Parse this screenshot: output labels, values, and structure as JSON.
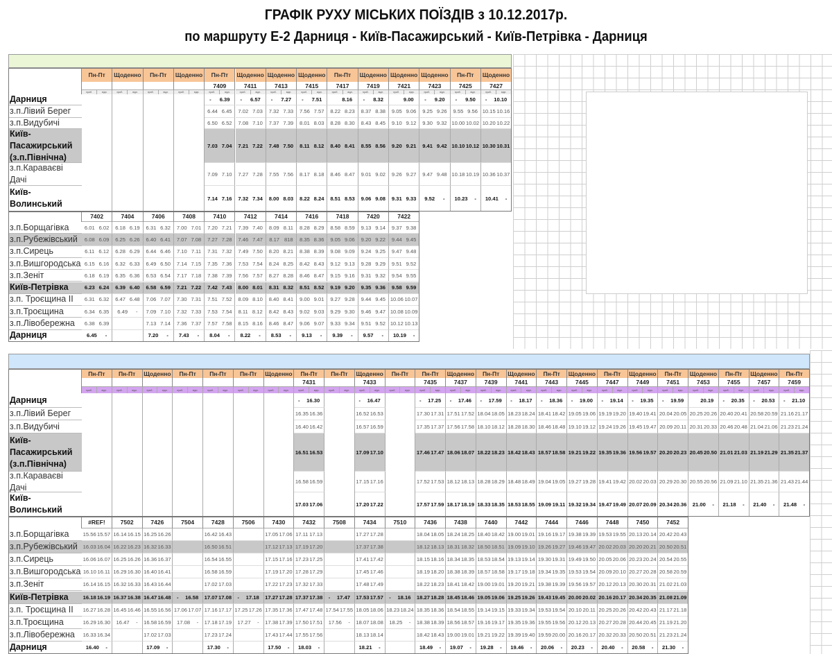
{
  "title": "ГРАФІК РУХУ МІСЬКИХ ПОЇЗДІВ з 10.12.2017р.",
  "subtitle": "по маршруту Е-2 Дарниця - Київ-Пасажирський - Київ-Петрівка - Дарниця",
  "sub_labels": [
    "приб.",
    "відп."
  ],
  "colors": {
    "day_header": "#f8c597",
    "top_bar": "#eaf6d6",
    "bottom_bar": "#cfe6fb",
    "sub_header_bottom": "#d3a4ef",
    "highlight_row": "#c8c8c8"
  },
  "stations_upper": [
    "Дарниця",
    "з.п.Лівий Берег",
    "з.п.Видубичі",
    "Київ-Пасажирський (з.п.Північна)",
    "з.п.Караваєві Дачі",
    "Київ-Волинський"
  ],
  "stations_lower": [
    "з.п.Борщагівка",
    "з.п.Рубежівський",
    "з.п.Сирець",
    "з.п.Вишгородська",
    "з.п.Зеніт",
    "Київ-Петрівка",
    "з.п. Троєщина ІІ",
    "з.п.Троєщина",
    "з.п.Лівобережна",
    "Дарниця"
  ],
  "morning": {
    "upper": [
      {
        "days": "Пн-Пт",
        "train": "",
        "times": []
      },
      {
        "days": "Щоденно",
        "train": "",
        "times": []
      },
      {
        "days": "Пн-Пт",
        "train": "",
        "times": []
      },
      {
        "days": "Щоденно",
        "train": "",
        "times": []
      },
      {
        "days": "Пн-Пт",
        "train": "7409",
        "times": [
          "-|6.39",
          "6.44|6.45",
          "6.50|6.52",
          "7.03|7.04",
          "7.09|7.10",
          "7.14|7.16"
        ]
      },
      {
        "days": "Щоденно",
        "train": "7411",
        "times": [
          "-|6.57",
          "7.02|7.03",
          "7.08|7.10",
          "7.21|7.22",
          "7.27|7.28",
          "7.32|7.34"
        ]
      },
      {
        "days": "Щоденно",
        "train": "7413",
        "times": [
          "-|7.27",
          "7.32|7.33",
          "7.37|7.39",
          "7.48|7.50",
          "7.55|7.56",
          "8.00|8.03"
        ]
      },
      {
        "days": "Щоденно",
        "train": "7415",
        "times": [
          "-|7.51",
          "7.56|7.57",
          "8.01|8.03",
          "8.11|8.12",
          "8.17|8.18",
          "8.22|8.24"
        ]
      },
      {
        "days": "Пн-Пт",
        "train": "7417",
        "times": [
          "|8.16",
          "8.22|8.23",
          "8.28|8.30",
          "8.40|8.41",
          "8.46|8.47",
          "8.51|8.53"
        ]
      },
      {
        "days": "Щоденно",
        "train": "7419",
        "times": [
          "-|8.32",
          "8.37|8.38",
          "8.43|8.45",
          "8.55|8.56",
          "9.01|9.02",
          "9.06|9.08"
        ]
      },
      {
        "days": "Щоденно",
        "train": "7421",
        "times": [
          "|9.00",
          "9.05|9.06",
          "9.10|9.12",
          "9.20|9.21",
          "9.26|9.27",
          "9.31|9.33"
        ]
      },
      {
        "days": "Щоденно",
        "train": "7423",
        "times": [
          "-|9.20",
          "9.25|9.26",
          "9.30|9.32",
          "9.41|9.42",
          "9.47|9.48",
          "9.52|-"
        ]
      },
      {
        "days": "Пн-Пт",
        "train": "7425",
        "times": [
          "-|9.50",
          "9.55|9.56",
          "10.00|10.02",
          "10.10|10.12",
          "10.18|10.19",
          "10.23|-"
        ]
      },
      {
        "days": "Щоденно",
        "train": "7427",
        "times": [
          "-|10.10",
          "10.15|10.16",
          "10.20|10.22",
          "10.30|10.31",
          "10.36|10.37",
          "10.41|-"
        ]
      }
    ],
    "lower": [
      {
        "train": "7402",
        "times": [
          "6.01|6.02",
          "6.08|6.09",
          "6.11|6.12",
          "6.15|6.16",
          "6.18|6.19",
          "6.23|6.24",
          "6.31|6.32",
          "6.34|6.35",
          "6.38|6.39",
          "6.45|-"
        ]
      },
      {
        "train": "7404",
        "times": [
          "6.18|6.19",
          "6.25|6.26",
          "6.28|6.29",
          "6.32|6.33",
          "6.35|6.36",
          "6.39|6.40",
          "6.47|6.48",
          "6.49|-",
          "",
          ""
        ]
      },
      {
        "train": "7406",
        "times": [
          "6.31|6.32",
          "6.40|6.41",
          "6.44|6.46",
          "6.49|6.50",
          "6.53|6.54",
          "6.58|6.59",
          "7.06|7.07",
          "7.09|7.10",
          "7.13|7.14",
          "7.20|-"
        ]
      },
      {
        "train": "7408",
        "times": [
          "7.00|7.01",
          "7.07|7.08",
          "7.10|7.11",
          "7.14|7.15",
          "7.17|7.18",
          "7.21|7.22",
          "7.30|7.31",
          "7.32|7.33",
          "7.36|7.37",
          "7.43|-"
        ]
      },
      {
        "train": "7410",
        "times": [
          "7.20|7.21",
          "7.27|7.28",
          "7.31|7.32",
          "7.35|7.36",
          "7.38|7.39",
          "7.42|7.43",
          "7.51|7.52",
          "7.53|7.54",
          "7.57|7.58",
          "8.04|-"
        ]
      },
      {
        "train": "7412",
        "times": [
          "7.39|7.40",
          "7.46|7.47",
          "7.49|7.50",
          "7.53|7.54",
          "7.56|7.57",
          "8.00|8.01",
          "8.09|8.10",
          "8.11|8.12",
          "8.15|8.16",
          "8.22|-"
        ]
      },
      {
        "train": "7414",
        "times": [
          "8.09|8.11",
          "8.17|818",
          "8.20|8.21",
          "8.24|8.25",
          "8.27|8.28",
          "8.31|8.32",
          "8.40|8.41",
          "8.42|8.43",
          "8.46|8.47",
          "8.53|-"
        ]
      },
      {
        "train": "7416",
        "times": [
          "8.28|8.29",
          "8.35|8.36",
          "8.38|8.39",
          "8.42|8.43",
          "8.46|8.47",
          "8.51|8.52",
          "9.00|9.01",
          "9.02|9.03",
          "9.06|9.07",
          "9.13|-"
        ]
      },
      {
        "train": "7418",
        "times": [
          "8.58|8.59",
          "9.05|9.06",
          "9.08|9.09",
          "9.12|9.13",
          "9.15|9.16",
          "9.19|9.20",
          "9.27|9.28",
          "9.29|9.30",
          "9.33|9.34",
          "9.39|-"
        ]
      },
      {
        "train": "7420",
        "times": [
          "9.13|9.14",
          "9.20|9.22",
          "9.24|9.25",
          "9.28|9.29",
          "9.31|9.32",
          "9.35|9.36",
          "9.44|9.45",
          "9.46|9.47",
          "9.51|9.52",
          "9.57|-"
        ]
      },
      {
        "train": "7422",
        "times": [
          "9.37|9.38",
          "9.44|9.45",
          "9.47|9.48",
          "9.51|9.52",
          "9.54|9.55",
          "9.58|9.59",
          "10.06|10.07",
          "10.08|10.09",
          "10.12|10.13",
          "10.19|-"
        ]
      }
    ]
  },
  "evening": {
    "upper": [
      {
        "days": "Пн-Пт",
        "train": "",
        "times": []
      },
      {
        "days": "Пн-Пт",
        "train": "",
        "times": []
      },
      {
        "days": "Щоденно",
        "train": "",
        "times": []
      },
      {
        "days": "Пн-Пт",
        "train": "",
        "times": []
      },
      {
        "days": "Пн-Пт",
        "train": "",
        "times": []
      },
      {
        "days": "Пн-Пт",
        "train": "",
        "times": []
      },
      {
        "days": "Щоденно",
        "train": "",
        "times": []
      },
      {
        "days": "Пн-Пт",
        "train": "7431",
        "times": [
          "-|16.30",
          "16.35|16.36",
          "16.40|16.42",
          "16.51|16.53",
          "16.58|16.59",
          "17.03|17.06"
        ]
      },
      {
        "days": "Пн-Пт",
        "train": "",
        "times": []
      },
      {
        "days": "Щоденно",
        "train": "7433",
        "times": [
          "-|16.47",
          "16.52|16.53",
          "16.57|16.59",
          "17.09|17.10",
          "17.15|17.16",
          "17.20|17.22"
        ]
      },
      {
        "days": "Пн-Пт",
        "train": "",
        "times": []
      },
      {
        "days": "Пн-Пт",
        "train": "7435",
        "times": [
          "-|17.25",
          "17.30|17.31",
          "17.35|17.37",
          "17.46|17.47",
          "17.52|17.53",
          "17.57|17.59"
        ]
      },
      {
        "days": "Щоденно",
        "train": "7437",
        "times": [
          "-|17.46",
          "17.51|17.52",
          "17.56|17.58",
          "18.06|18.07",
          "18.12|18.13",
          "18.17|18.19"
        ]
      },
      {
        "days": "Пн-Пт",
        "train": "7439",
        "times": [
          "-|17.59",
          "18.04|18.05",
          "18.10|18.12",
          "18.22|18.23",
          "18.28|18.29",
          "18.33|18.35"
        ]
      },
      {
        "days": "Щоденно",
        "train": "7441",
        "times": [
          "-|18.17",
          "18.23|18.24",
          "18.28|18.30",
          "18.42|18.43",
          "18.48|18.49",
          "18.53|18.55"
        ]
      },
      {
        "days": "Пн-Пт",
        "train": "7443",
        "times": [
          "-|18.36",
          "18.41|18.42",
          "18.46|18.48",
          "18.57|18.58",
          "19.04|19.05",
          "19.09|19.11"
        ]
      },
      {
        "days": "Щоденно",
        "train": "7445",
        "times": [
          "-|19.00",
          "19.05|19.06",
          "19.10|19.12",
          "19.21|19.22",
          "19.27|19.28",
          "19.32|19.34"
        ]
      },
      {
        "days": "Пн-Пт",
        "train": "7447",
        "times": [
          "-|19.14",
          "19.19|19.20",
          "19.24|19.26",
          "19.35|19.36",
          "19.41|19.42",
          "19.47|19.49"
        ]
      },
      {
        "days": "Щоденно",
        "train": "7449",
        "times": [
          "-|19.35",
          "19.40|19.41",
          "19.45|19.47",
          "19.56|19.57",
          "20.02|20.03",
          "20.07|20.09"
        ]
      },
      {
        "days": "Пн-Пт",
        "train": "7451",
        "times": [
          "-|19.59",
          "20.04|20.05",
          "20.09|20.11",
          "20.20|20.23",
          "20.29|20.30",
          "20.34|20.36"
        ]
      },
      {
        "days": "Щоденно",
        "train": "7453",
        "times": [
          "|20.19",
          "20.25|20.26",
          "20.31|20.33",
          "20.45|20.50",
          "20.55|20.56",
          "21.00|-"
        ]
      },
      {
        "days": "Пн-Пт",
        "train": "7455",
        "times": [
          "-|20.35",
          "20.40|20.41",
          "20.46|20.48",
          "21.01|21.03",
          "21.09|21.10",
          "21.18|-"
        ]
      },
      {
        "days": "Щоденно",
        "train": "7457",
        "times": [
          "-|20.53",
          "20.58|20.59",
          "21.04|21.06",
          "21.19|21.29",
          "21.35|21.36",
          "21.40|-"
        ]
      },
      {
        "days": "Пн-Пт",
        "train": "7459",
        "times": [
          "-|21.10",
          "21.16|21.17",
          "21.23|21.24",
          "21.35|21.37",
          "21.43|21.44",
          "21.48|-"
        ]
      }
    ],
    "lower": [
      {
        "train": "#REF!",
        "times": [
          "15.56|15.57",
          "16.03|16.04",
          "16.06|16.07",
          "16.10|16.11",
          "16.14|16.15",
          "16.18|16.19",
          "16.27|16.28",
          "16.29|16.30",
          "16.33|16.34",
          "16.40|-"
        ]
      },
      {
        "train": "7502",
        "times": [
          "16.14|16.15",
          "16.22|16.23",
          "16.25|16.26",
          "16.29|16.30",
          "16.32|16.33",
          "16.37|16.38",
          "16.45|16.46",
          "16.47|-",
          "",
          ""
        ]
      },
      {
        "train": "7426",
        "times": [
          "16.25|16.26",
          "16.32|16.33",
          "16.36|16.37",
          "16.40|16.41",
          "16.43|16.44",
          "16.47|16.48",
          "16.55|16.56",
          "16.58|16.59",
          "17.02|17.03",
          "17.09|-"
        ]
      },
      {
        "train": "7504",
        "times": [
          "",
          "",
          "",
          "",
          "",
          "-|16.58",
          "17.06|17.07",
          "17.08|-",
          "",
          ""
        ]
      },
      {
        "train": "7428",
        "times": [
          "16.42|16.43",
          "16.50|16.51",
          "16.54|16.55",
          "16.58|16.59",
          "17.02|17.03",
          "17.07|17.08",
          "17.16|17.17",
          "17.18|17.19",
          "17.23|17.24",
          "17.30|-"
        ]
      },
      {
        "train": "7506",
        "times": [
          "",
          "",
          "",
          "",
          "",
          "-|17.18",
          "17.25|17.26",
          "17.27|-",
          "",
          ""
        ]
      },
      {
        "train": "7430",
        "times": [
          "17.05|17.06",
          "17.12|17.13",
          "17.15|17.16",
          "17.19|17.20",
          "17.22|17.23",
          "17.27|17.28",
          "17.35|17.36",
          "17.38|17.39",
          "17.43|17.44",
          "17.50|-"
        ]
      },
      {
        "train": "7432",
        "times": [
          "17.11|17.13",
          "17.19|17.20",
          "17.23|17.25",
          "17.28|17.29",
          "17.32|17.33",
          "17.37|17.38",
          "17.47|17.48",
          "17.50|17.51",
          "17.55|17.56",
          "18.03|-"
        ]
      },
      {
        "train": "7508",
        "times": [
          "",
          "",
          "",
          "",
          "",
          "-|17.47",
          "17.54|17.55",
          "17.56|-",
          "",
          ""
        ]
      },
      {
        "train": "7434",
        "times": [
          "17.27|17.28",
          "17.37|17.38",
          "17.41|17.42",
          "17.45|17.46",
          "17.48|17.49",
          "17.53|17.57",
          "18.05|18.06",
          "18.07|18.08",
          "18.13|18.14",
          "18.21|-"
        ]
      },
      {
        "train": "7510",
        "times": [
          "",
          "",
          "",
          "",
          "",
          "-|18.16",
          "18.23|18.24",
          "18.25|-",
          "",
          ""
        ]
      },
      {
        "train": "7436",
        "times": [
          "18.04|18.05",
          "18.12|18.13",
          "18.15|18.16",
          "18.19|18.20",
          "18.22|18.23",
          "18.27|18.28",
          "18.35|18.36",
          "18.38|18.39",
          "18.42|18.43",
          "18.49|-"
        ]
      },
      {
        "train": "7438",
        "times": [
          "18.24|18.25",
          "18.31|18.32",
          "18.34|18.35",
          "18.38|18.39",
          "18.41|18.42",
          "18.45|18.46",
          "18.54|18.55",
          "18.56|18.57",
          "19.00|19.01",
          "19.07|-"
        ]
      },
      {
        "train": "7440",
        "times": [
          "18.40|18.42",
          "18.50|18.51",
          "18.53|18.54",
          "18.57|18.58",
          "19.00|19.01",
          "19.05|19.06",
          "19.14|19.15",
          "19.16|19.17",
          "19.21|19.22",
          "19.28|-"
        ]
      },
      {
        "train": "7442",
        "times": [
          "19.00|19.01",
          "19.09|19.10",
          "19.13|19.14",
          "19.17|19.18",
          "19.20|19.21",
          "19.25|19.26",
          "19.33|19.34",
          "19.35|19.36",
          "19.39|19.40",
          "19.46|-"
        ]
      },
      {
        "train": "7444",
        "times": [
          "19.16|19.17",
          "19.26|19.27",
          "19.30|19.31",
          "19.34|19.35",
          "19.38|19.39",
          "19.43|19.45",
          "19.53|19.54",
          "19.55|19.56",
          "19.59|20.00",
          "20.06|-"
        ]
      },
      {
        "train": "7446",
        "times": [
          "19.38|19.39",
          "19.46|19.47",
          "19.49|19.50",
          "19.53|19.54",
          "19.56|19.57",
          "20.00|20.02",
          "20.10|20.11",
          "20.12|20.13",
          "20.16|20.17",
          "20.23|-"
        ]
      },
      {
        "train": "7448",
        "times": [
          "19.53|19.55",
          "20.02|20.03",
          "20.05|20.06",
          "20.09|20.10",
          "20.12|20.13",
          "20.16|20.17",
          "20.25|20.26",
          "20.27|20.28",
          "20.32|20.33",
          "20.40|-"
        ]
      },
      {
        "train": "7450",
        "times": [
          "20.13|20.14",
          "20.20|20.21",
          "20.23|20.24",
          "20.27|20.28",
          "20.30|20.31",
          "20.34|20.35",
          "20.42|20.43",
          "20.44|20.45",
          "20.50|20.51",
          "20.58|-"
        ]
      },
      {
        "train": "7452",
        "times": [
          "20.42|20.43",
          "20.50|20.51",
          "20.54|20.55",
          "20.58|20.59",
          "21.02|21.03",
          "21.08|21.09",
          "21.17|21.18",
          "21.19|21.20",
          "21.23|21.24",
          "21.30|-"
        ]
      }
    ]
  }
}
